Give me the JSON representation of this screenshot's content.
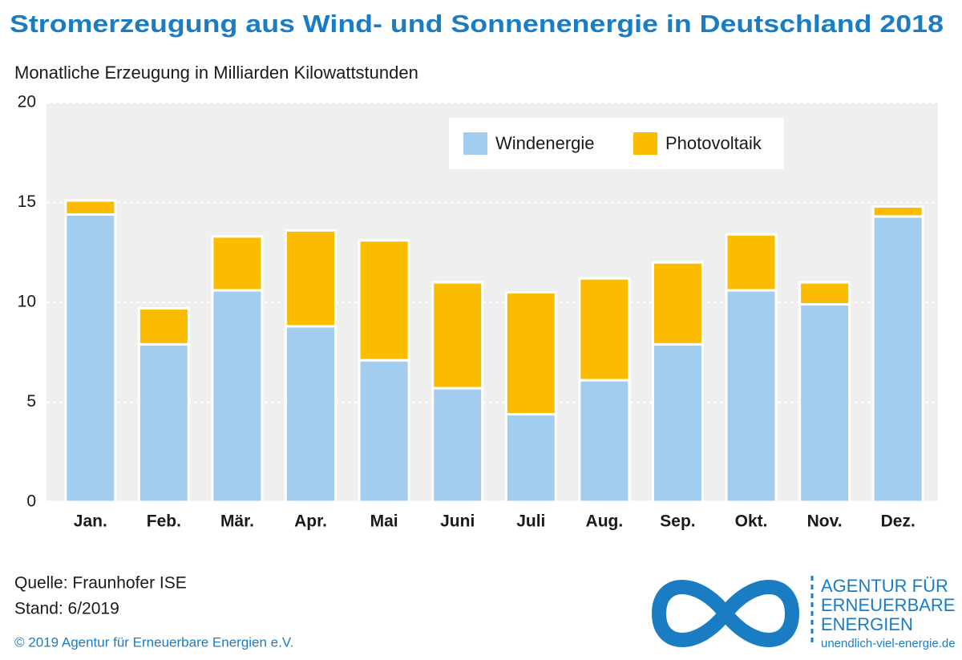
{
  "chart_data": {
    "type": "stacked_bar",
    "title": "Stromerzeugung aus Wind- und Sonnenenergie in Deutschland 2018",
    "subtitle": "Monatliche Erzeugung in Milliarden Kilowattstunden",
    "categories": [
      "Jan.",
      "Feb.",
      "Mär.",
      "Apr.",
      "Mai",
      "Juni",
      "Juli",
      "Aug.",
      "Sep.",
      "Okt.",
      "Nov.",
      "Dez."
    ],
    "series": [
      {
        "name": "Windenergie",
        "color": "#a3cdef",
        "values": [
          14.4,
          7.9,
          10.6,
          8.8,
          7.1,
          5.7,
          4.4,
          6.1,
          7.9,
          10.6,
          9.9,
          14.3
        ]
      },
      {
        "name": "Photovoltaik",
        "color": "#fbbc00",
        "values": [
          0.7,
          1.8,
          2.7,
          4.8,
          6.0,
          5.3,
          6.1,
          5.1,
          4.1,
          2.8,
          1.1,
          0.5
        ]
      }
    ],
    "ylim": [
      0,
      20
    ],
    "yticks": [
      0,
      5,
      10,
      15,
      20
    ],
    "grid": true,
    "legend": "top"
  },
  "footer": {
    "source": "Quelle: Fraunhofer ISE",
    "date": "Stand: 6/2019",
    "copyright": "© 2019 Agentur für Erneuerbare Energien e.V."
  },
  "logo": {
    "lines": [
      "AGENTUR FÜR",
      "ERNEUERBARE",
      "ENERGIEN"
    ],
    "url": "unendlich-viel-energie.de"
  }
}
